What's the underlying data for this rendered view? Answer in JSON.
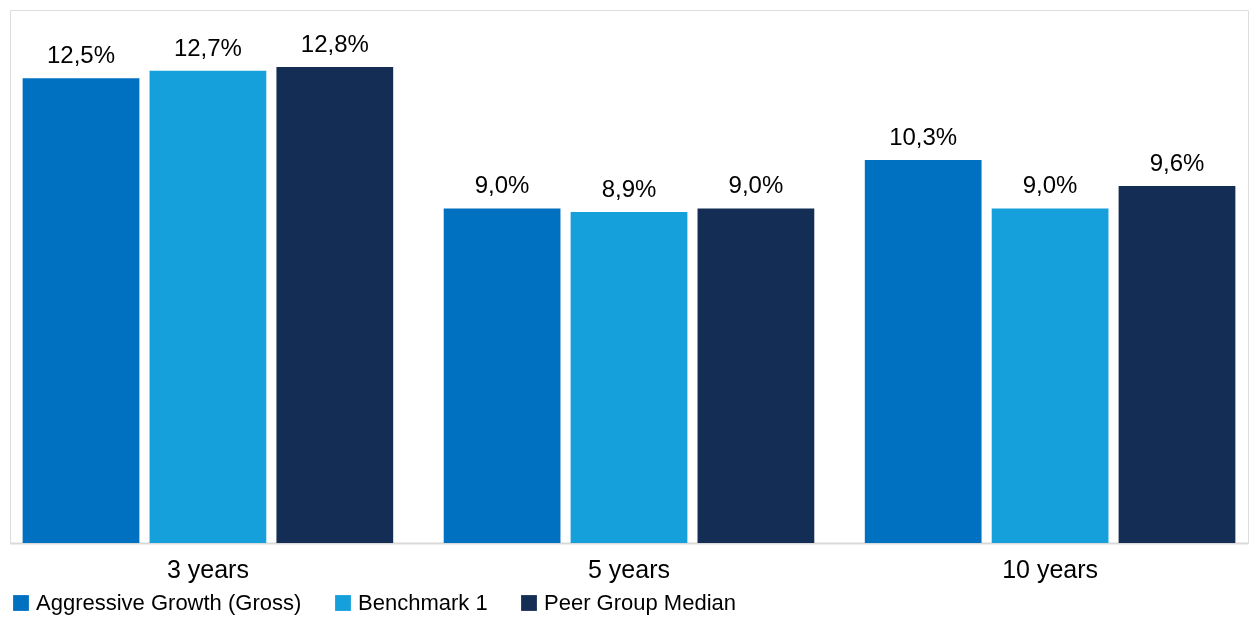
{
  "chart_data": {
    "type": "bar",
    "categories": [
      "3 years",
      "5 years",
      "10 years"
    ],
    "series": [
      {
        "name": "Aggressive Growth (Gross)",
        "color": "#0070c0",
        "values": [
          12.5,
          9.0,
          10.3
        ],
        "value_labels": [
          "12,5%",
          "9,0%",
          "10,3%"
        ]
      },
      {
        "name": "Benchmark 1",
        "color": "#15a0db",
        "values": [
          12.7,
          8.9,
          9.0
        ],
        "value_labels": [
          "12,7%",
          "8,9%",
          "9,0%"
        ]
      },
      {
        "name": "Peer Group Median",
        "color": "#142d54",
        "values": [
          12.8,
          9.0,
          9.6
        ],
        "value_labels": [
          "12,8%",
          "9,0%",
          "9,6%"
        ]
      }
    ],
    "legend": "bottom",
    "grid": false,
    "tick_labels": "x"
  }
}
